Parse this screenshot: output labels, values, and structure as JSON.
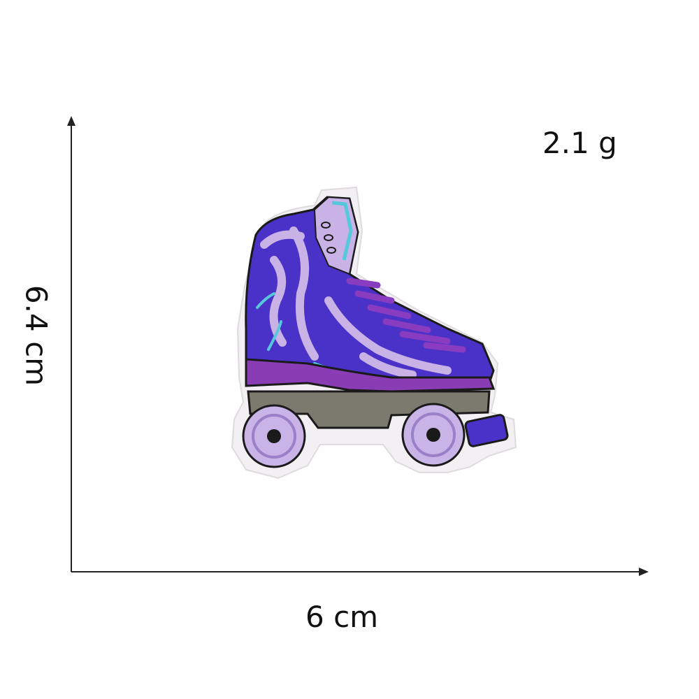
{
  "product": {
    "weight_label": "2.1 g",
    "width_label": "6 cm",
    "height_label": "6.4 cm",
    "subject": "roller-skate-embroidered-patch"
  },
  "colors": {
    "boot_main": "#4a32c8",
    "boot_stripes": "#c8b2e6",
    "accent_cyan": "#55c8dc",
    "laces": "#8a3cc0",
    "sole": "#8a3cb4",
    "plate": "#7a7a6e",
    "wheels": "#c8b4e6",
    "felt_border": "#f2f0f2",
    "outline": "#1a1a1a"
  }
}
